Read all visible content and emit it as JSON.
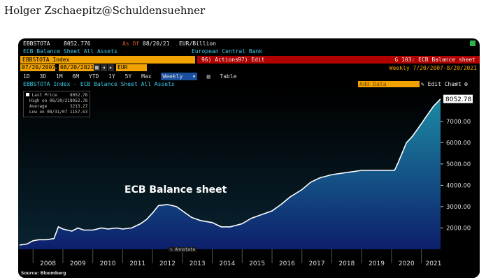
{
  "byline": "Holger Zschaepitz@Schuldensuehner",
  "header": {
    "ticker": "EBBSTOTA",
    "last_value": "8052.776",
    "as_of_label": "As Of",
    "as_of_date": "08/20/21",
    "unit": "EUR/Billion",
    "description": "ECB Balance Sheet All Assets",
    "issuer": "European Central Bank"
  },
  "toolbar": {
    "security_field": "EBBSTOTA Index",
    "actions_label": "96) Actions",
    "edit_label": "97) Edit",
    "function_title": "G 103: ECB Balance sheet",
    "start_date": "07/20/2007",
    "end_date": "08/20/2021",
    "currency": "EUR",
    "period_info": "Weekly  7/20/2007-8/20/2021"
  },
  "range_tabs": [
    "1D",
    "3D",
    "1M",
    "6M",
    "YTD",
    "1Y",
    "5Y",
    "Max"
  ],
  "frequency": "Weekly",
  "table_label": "Table",
  "subheader": "EBBSTOTA Index - ECB Balance Sheet All Assets",
  "add_data_label": "Add Data",
  "edit_chart_label": "Edit Chart",
  "legend": {
    "last_price_label": "Last Price",
    "last_price": "8052.78",
    "high_label": "High on 08/20/21",
    "high": "8052.78",
    "avg_label": "Average",
    "avg": "3213.27",
    "low_label": "Low on 08/31/07",
    "low": "1157.53"
  },
  "annotate_label": "Annotate",
  "source_label": "Source: Bloomberg",
  "last_price_tag": "8052.78",
  "colors": {
    "accent": "#f0a200",
    "area_top": "#1c8aa3",
    "area_bottom": "#0d1f6b",
    "line": "#ffffff"
  },
  "chart_data": {
    "type": "area",
    "title": "ECB Balance sheet",
    "x": [
      2007.55,
      2007.8,
      2008.0,
      2008.2,
      2008.45,
      2008.7,
      2008.85,
      2009.0,
      2009.3,
      2009.5,
      2009.7,
      2010.0,
      2010.3,
      2010.5,
      2010.8,
      2011.0,
      2011.3,
      2011.6,
      2011.8,
      2012.0,
      2012.2,
      2012.5,
      2012.8,
      2013.0,
      2013.3,
      2013.6,
      2014.0,
      2014.3,
      2014.6,
      2015.0,
      2015.3,
      2015.6,
      2016.0,
      2016.3,
      2016.6,
      2017.0,
      2017.3,
      2017.6,
      2018.0,
      2018.5,
      2019.0,
      2019.5,
      2019.9,
      2020.1,
      2020.2,
      2020.35,
      2020.5,
      2020.7,
      2021.0,
      2021.2,
      2021.4,
      2021.64
    ],
    "y": [
      1200,
      1250,
      1400,
      1450,
      1450,
      1500,
      2050,
      1950,
      1850,
      2000,
      1900,
      1900,
      2000,
      1950,
      2000,
      1950,
      2000,
      2200,
      2400,
      2700,
      3050,
      3100,
      3000,
      2800,
      2500,
      2350,
      2250,
      2050,
      2050,
      2200,
      2450,
      2600,
      2800,
      3100,
      3450,
      3800,
      4150,
      4350,
      4500,
      4600,
      4700,
      4700,
      4700,
      4700,
      5000,
      5500,
      6000,
      6300,
      6900,
      7300,
      7700,
      8052.78
    ],
    "xlabel": "",
    "ylabel": "",
    "x_ticks": [
      "2008",
      "2009",
      "2010",
      "2011",
      "2012",
      "2013",
      "2014",
      "2015",
      "2016",
      "2017",
      "2018",
      "2019",
      "2020",
      "2021"
    ],
    "y_ticks": [
      "2000.00",
      "3000.00",
      "4000.00",
      "5000.00",
      "6000.00",
      "7000.00"
    ],
    "xlim": [
      2007.55,
      2021.64
    ],
    "ylim": [
      1000,
      8500
    ],
    "grid": false,
    "legend": "top-left"
  }
}
